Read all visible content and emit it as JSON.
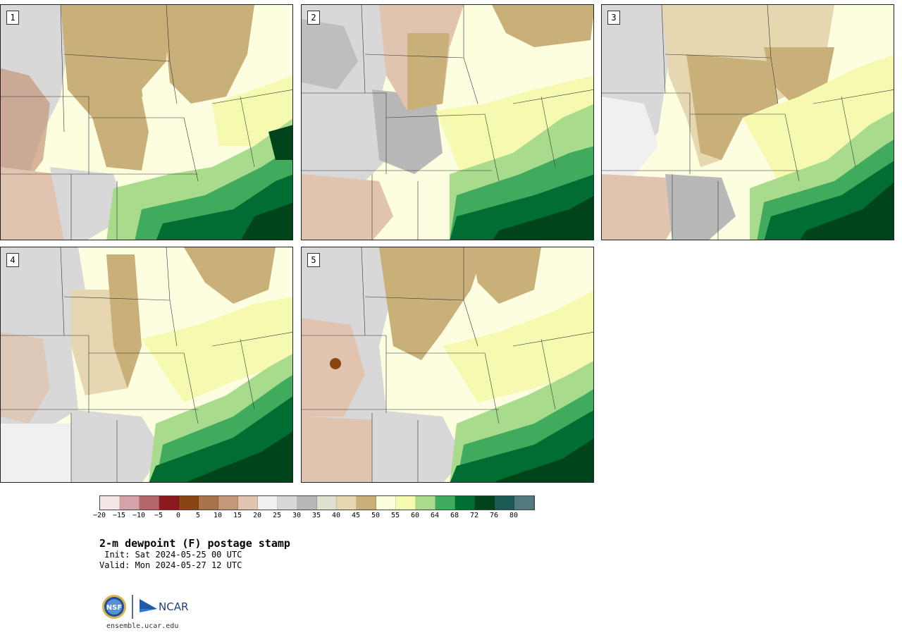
{
  "panels": [
    {
      "label": "1"
    },
    {
      "label": "2"
    },
    {
      "label": "3"
    },
    {
      "label": "4"
    },
    {
      "label": "5"
    }
  ],
  "colorbar": {
    "colors": [
      "#f5e6e8",
      "#d4a2a8",
      "#b5666b",
      "#8b1a1f",
      "#8b4513",
      "#a8724a",
      "#c4967a",
      "#e0c4b0",
      "#f0f0f0",
      "#d8d8d8",
      "#b8b8b8",
      "#e0e0d0",
      "#e6d7b0",
      "#c9b078",
      "#fdfde0",
      "#f6f9b0",
      "#a8dc8c",
      "#41ab5d",
      "#006d33",
      "#00441b",
      "#1b5a52",
      "#527a7e"
    ],
    "ticks": [
      "−20",
      "−15",
      "−10",
      "−5",
      "0",
      "5",
      "10",
      "15",
      "20",
      "25",
      "30",
      "35",
      "40",
      "45",
      "50",
      "55",
      "60",
      "64",
      "68",
      "72",
      "76",
      "80"
    ]
  },
  "title": "2-m dewpoint (F) postage stamp",
  "init": " Init: Sat 2024-05-25 00 UTC",
  "valid": "Valid: Mon 2024-05-27 12 UTC",
  "logos": {
    "nsf": "NSF",
    "ncar": "NCAR"
  },
  "url": "ensemble.ucar.edu"
}
